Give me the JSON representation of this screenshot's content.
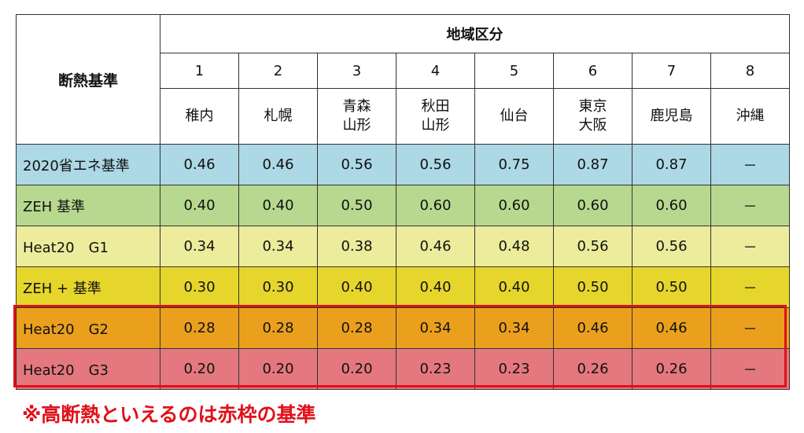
{
  "table": {
    "corner_label": "断熱基準",
    "region_header": "地域区分",
    "region_numbers": [
      "1",
      "2",
      "3",
      "4",
      "5",
      "6",
      "7",
      "8"
    ],
    "region_cities": [
      [
        "稚内"
      ],
      [
        "札幌"
      ],
      [
        "青森",
        "山形"
      ],
      [
        "秋田",
        "山形"
      ],
      [
        "仙台"
      ],
      [
        "東京",
        "大阪"
      ],
      [
        "鹿児島"
      ],
      [
        "沖縄"
      ]
    ],
    "rows": [
      {
        "label": "2020省エネ基準",
        "color": "#add8e6",
        "values": [
          "0.46",
          "0.46",
          "0.56",
          "0.56",
          "0.75",
          "0.87",
          "0.87",
          "－"
        ]
      },
      {
        "label": "ZEH 基準",
        "color": "#b7d98f",
        "values": [
          "0.40",
          "0.40",
          "0.50",
          "0.60",
          "0.60",
          "0.60",
          "0.60",
          "－"
        ]
      },
      {
        "label": "Heat20　G1",
        "color": "#ecec9c",
        "values": [
          "0.34",
          "0.34",
          "0.38",
          "0.46",
          "0.48",
          "0.56",
          "0.56",
          "－"
        ]
      },
      {
        "label": "ZEH + 基準",
        "color": "#e6d62c",
        "values": [
          "0.30",
          "0.30",
          "0.40",
          "0.40",
          "0.40",
          "0.50",
          "0.50",
          "－"
        ]
      },
      {
        "label": "Heat20　G2",
        "color": "#eba01d",
        "values": [
          "0.28",
          "0.28",
          "0.28",
          "0.34",
          "0.34",
          "0.46",
          "0.46",
          "－"
        ]
      },
      {
        "label": "Heat20　G3",
        "color": "#e4787e",
        "values": [
          "0.20",
          "0.20",
          "0.20",
          "0.23",
          "0.23",
          "0.26",
          "0.26",
          "－"
        ]
      }
    ]
  },
  "note": "※高断熱といえるのは赤枠の基準",
  "highlight_color": "#e0101a"
}
